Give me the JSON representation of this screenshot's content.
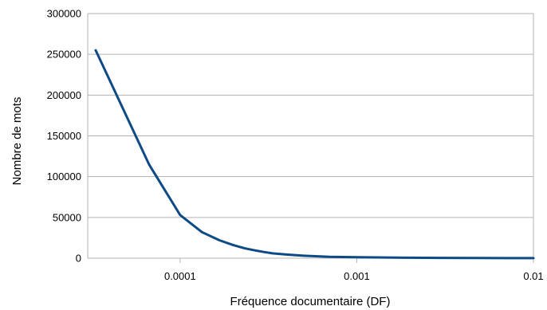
{
  "chart_data": {
    "type": "line",
    "title": "",
    "xlabel": "Fréquence documentaire (DF)",
    "ylabel": "Nombre de mots",
    "x_scale": "log",
    "xlim": [
      3e-05,
      0.01
    ],
    "ylim": [
      0,
      300000
    ],
    "x_ticks": [
      0.0001,
      0.001,
      0.01
    ],
    "x_tick_labels": [
      "0.0001",
      "0.001",
      "0.01"
    ],
    "y_ticks": [
      0,
      50000,
      100000,
      150000,
      200000,
      250000,
      300000
    ],
    "y_tick_labels": [
      "0",
      "50000",
      "100000",
      "150000",
      "200000",
      "250000",
      "300000"
    ],
    "grid": true,
    "legend": "none",
    "series": [
      {
        "color": "#0e4a86",
        "x": [
          3.33e-05,
          6.67e-05,
          0.0001,
          0.000133,
          0.000167,
          0.0002,
          0.000233,
          0.000267,
          0.0003,
          0.000333,
          0.0004,
          0.0005,
          0.0007,
          0.001,
          0.002,
          0.003,
          0.005,
          0.01
        ],
        "y": [
          255000,
          115000,
          53000,
          32000,
          22000,
          16000,
          12000,
          9500,
          7500,
          6000,
          4500,
          3000,
          1800,
          1200,
          600,
          350,
          150,
          50
        ]
      }
    ]
  }
}
